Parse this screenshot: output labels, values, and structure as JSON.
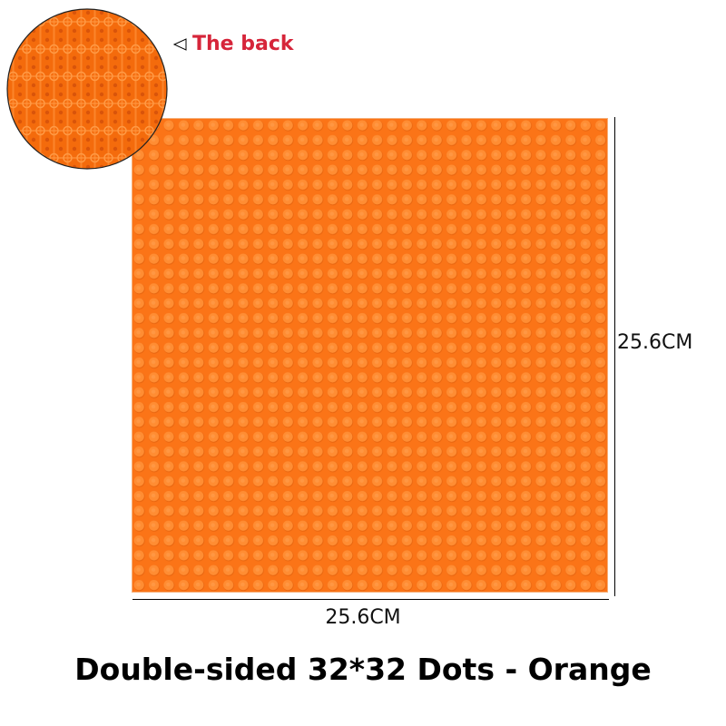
{
  "product": {
    "caption": "Double-sided 32*32 Dots - Orange",
    "width_label": "25.6CM",
    "height_label": "25.6CM",
    "back_label": "The back",
    "back_arrow_icon": "triangle-left-outline-icon",
    "studs_per_side": 32,
    "colors": {
      "plate": "#ff7a1a",
      "stud": "#ff8a30",
      "back_label": "#d6253a"
    }
  }
}
